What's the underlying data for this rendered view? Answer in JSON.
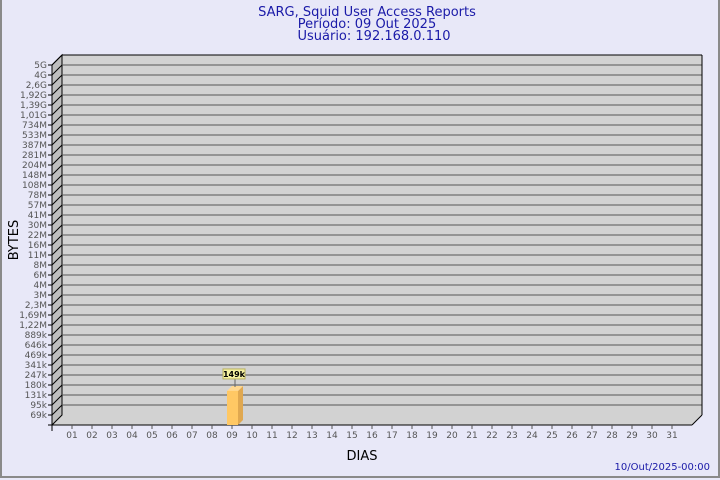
{
  "chart_data": {
    "type": "bar",
    "title": [
      "SARG, Squid User Access Reports",
      "Período: 09 Out 2025",
      "Usuário: 192.168.0.110"
    ],
    "xlabel": "DIAS",
    "ylabel": "BYTES",
    "y_scale": "log",
    "y_tick_labels": [
      "5G",
      "4G",
      "2,6G",
      "1,92G",
      "1,39G",
      "1,01G",
      "734M",
      "533M",
      "387M",
      "281M",
      "204M",
      "148M",
      "108M",
      "78M",
      "57M",
      "41M",
      "30M",
      "22M",
      "16M",
      "11M",
      "8M",
      "6M",
      "4M",
      "3M",
      "2,3M",
      "1,69M",
      "1,22M",
      "889k",
      "646k",
      "469k",
      "341k",
      "247k",
      "180k",
      "131k",
      "95k",
      "69k"
    ],
    "categories": [
      "01",
      "02",
      "03",
      "04",
      "05",
      "06",
      "07",
      "08",
      "09",
      "10",
      "11",
      "12",
      "13",
      "14",
      "15",
      "16",
      "17",
      "18",
      "19",
      "20",
      "21",
      "22",
      "23",
      "24",
      "25",
      "26",
      "27",
      "28",
      "29",
      "30",
      "31"
    ],
    "values": [
      null,
      null,
      null,
      null,
      null,
      null,
      null,
      null,
      149000,
      null,
      null,
      null,
      null,
      null,
      null,
      null,
      null,
      null,
      null,
      null,
      null,
      null,
      null,
      null,
      null,
      null,
      null,
      null,
      null,
      null,
      null
    ],
    "data_labels": {
      "09": "149k"
    },
    "grid": true,
    "colors": {
      "bar": "#ffc864",
      "wall": "#d2d2d2",
      "title": "#1a1aa8"
    }
  },
  "footer": {
    "timestamp": "10/Out/2025-00:00"
  }
}
